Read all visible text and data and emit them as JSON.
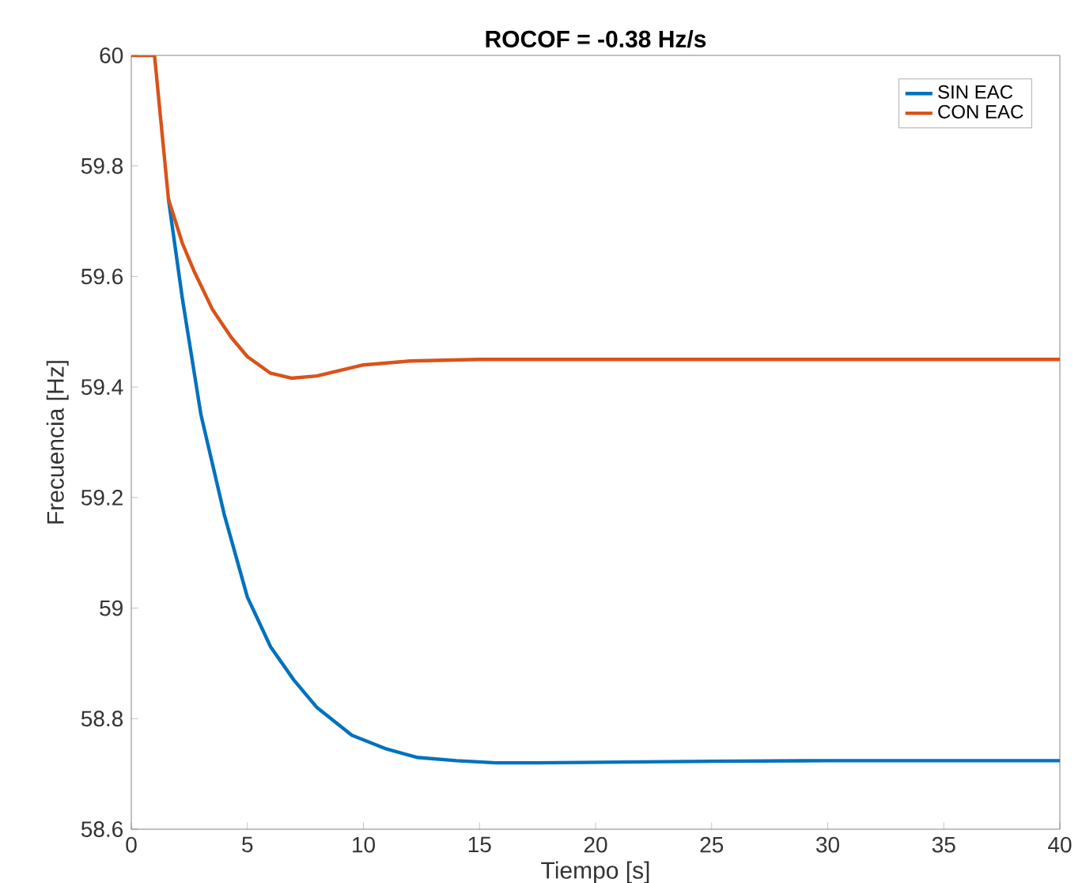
{
  "chart_data": {
    "type": "line",
    "title": "ROCOF = -0.38 Hz/s",
    "xlabel": "Tiempo [s]",
    "ylabel": "Frecuencia [Hz]",
    "xlim": [
      0,
      40
    ],
    "ylim": [
      58.6,
      60
    ],
    "xticks": [
      0,
      5,
      10,
      15,
      20,
      25,
      30,
      35,
      40
    ],
    "yticks": [
      58.6,
      58.8,
      59,
      59.2,
      59.4,
      59.6,
      59.8,
      60
    ],
    "grid": false,
    "legend": "top right",
    "marker": "none",
    "line_style": "solid",
    "series": [
      {
        "name": "SIN EAC",
        "color": "#0072bd",
        "x": [
          1.6,
          2.2,
          3,
          4,
          5,
          6,
          7,
          8,
          9.5,
          11,
          12.3,
          14,
          15.7,
          17.5,
          20,
          25,
          30,
          35,
          40
        ],
        "values": [
          59.74,
          59.56,
          59.35,
          59.17,
          59.02,
          58.93,
          58.87,
          58.82,
          58.77,
          58.745,
          58.73,
          58.724,
          58.72,
          58.72,
          58.721,
          58.723,
          58.724,
          58.724,
          58.724
        ]
      },
      {
        "name": "CON EAC",
        "color": "#d95319",
        "x": [
          0,
          1,
          1.6,
          2.2,
          2.7,
          3.5,
          4.3,
          5,
          6,
          6.9,
          8,
          9,
          10,
          12,
          15,
          20,
          25,
          30,
          35,
          40
        ],
        "values": [
          60,
          60,
          59.74,
          59.66,
          59.61,
          59.54,
          59.49,
          59.455,
          59.425,
          59.416,
          59.42,
          59.43,
          59.44,
          59.447,
          59.45,
          59.45,
          59.45,
          59.45,
          59.45,
          59.45
        ]
      }
    ]
  }
}
